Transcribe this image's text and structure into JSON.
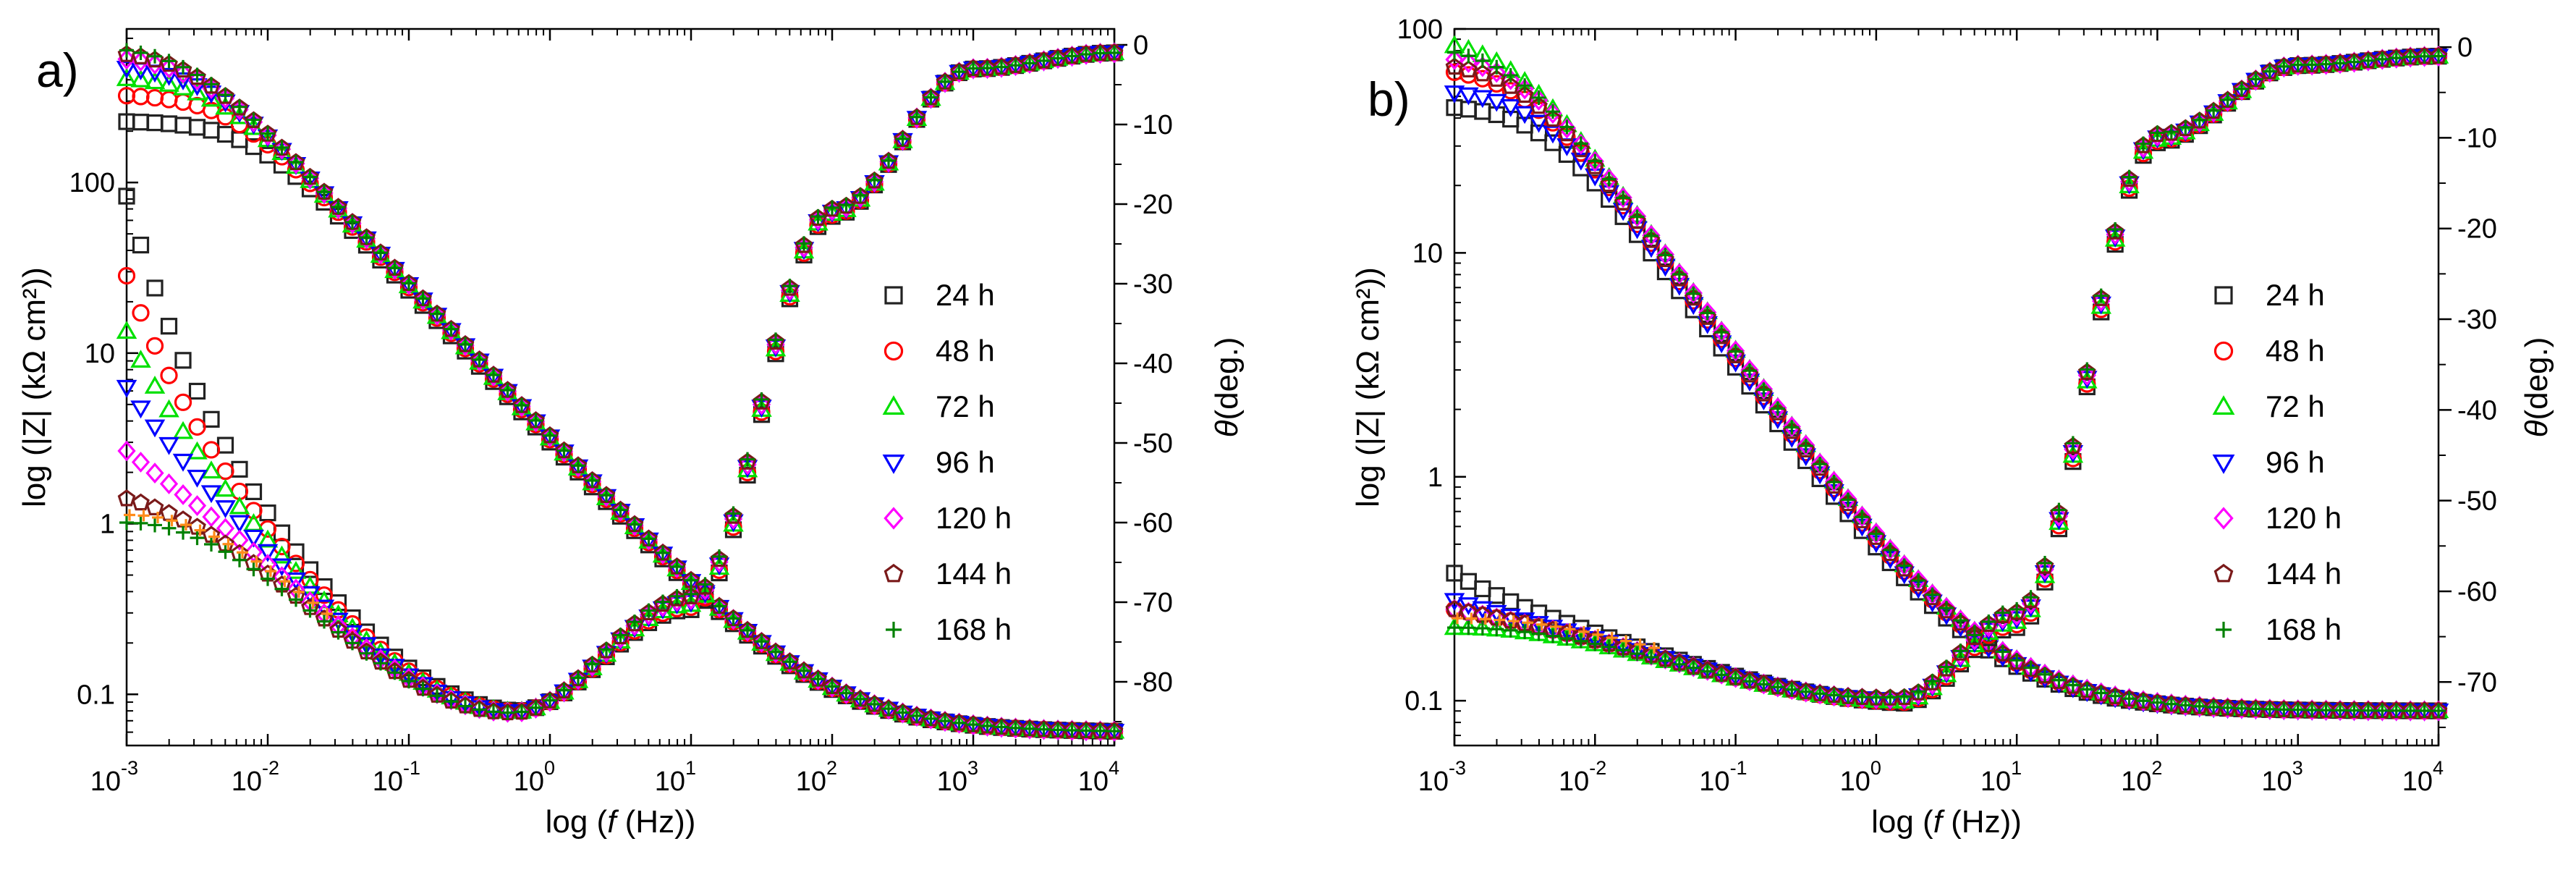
{
  "chart_data": [
    {
      "type": "scatter",
      "panel_label": "a)",
      "xlabel_prefix": "log (",
      "xlabel_var": "f",
      "xlabel_suffix": " (Hz))",
      "ylabel": "log (|Z| (kΩ cm²))",
      "y2label_var": "θ",
      "y2label_suffix": "(deg.)",
      "x_scale": "log",
      "xlim_log10": [
        -3,
        4
      ],
      "y_scale": "log",
      "ylim_log10": [
        -1.3,
        2.9
      ],
      "y2lim": [
        -88,
        2
      ],
      "x_tick_exponents": [
        "-3",
        "-2",
        "-1",
        "0",
        "1",
        "2",
        "3",
        "4"
      ],
      "y_tick_labels": [
        "0.1",
        "1",
        "10",
        "100"
      ],
      "y2_tick_labels": [
        "0",
        "-10",
        "-20",
        "-30",
        "-40",
        "-50",
        "-60",
        "-70",
        "-80"
      ],
      "y2_ticks": [
        0,
        -10,
        -20,
        -30,
        -40,
        -50,
        -60,
        -70,
        -80
      ],
      "legend": [
        "24 h",
        "48 h",
        "72 h",
        "96 h",
        "120 h",
        "144 h",
        "168 h"
      ],
      "legend_position": "right-center",
      "magnitude_model": {
        "series": [
          {
            "name": "24 h",
            "R0": 0.06,
            "Rp": 230,
            "fc": 0.0079,
            "n": 0.9
          },
          {
            "name": "48 h",
            "R0": 0.06,
            "Rp": 330,
            "fc": 0.0055,
            "n": 0.9
          },
          {
            "name": "72 h",
            "R0": 0.06,
            "Rp": 420,
            "fc": 0.0043,
            "n": 0.9
          },
          {
            "name": "96 h",
            "R0": 0.06,
            "Rp": 490,
            "fc": 0.0037,
            "n": 0.9
          },
          {
            "name": "120 h",
            "R0": 0.06,
            "Rp": 560,
            "fc": 0.0032,
            "n": 0.9
          },
          {
            "name": "144 h",
            "R0": 0.06,
            "Rp": 600,
            "fc": 0.003,
            "n": 0.9
          },
          {
            "name": "168 h",
            "R0": 0.06,
            "Rp": 640,
            "fc": 0.0028,
            "n": 0.9
          }
        ]
      },
      "phase_model": {
        "series": [
          {
            "name": "24 h",
            "phase_at_1e-3": -19
          },
          {
            "name": "48 h",
            "phase_at_1e-3": -29
          },
          {
            "name": "72 h",
            "phase_at_1e-3": -36
          },
          {
            "name": "96 h",
            "phase_at_1e-3": -43
          },
          {
            "name": "120 h",
            "phase_at_1e-3": -51
          },
          {
            "name": "144 h",
            "phase_at_1e-3": -57
          },
          {
            "name": "168 h",
            "phase_at_1e-3": -60
          }
        ],
        "minimum": {
          "x": 0.55,
          "y": -84
        },
        "approx_at_10Hz": -70,
        "approx_at_100Hz": -21,
        "approx_at_1000Hz": -3,
        "approx_at_10000Hz": -1
      }
    },
    {
      "type": "scatter",
      "panel_label": "b)",
      "xlabel_prefix": "log (",
      "xlabel_var": "f",
      "xlabel_suffix": " (Hz))",
      "ylabel": "log (|Z| (kΩ cm²))",
      "y2label_var": "θ",
      "y2label_suffix": "(deg.)",
      "x_scale": "log",
      "xlim_log10": [
        -3,
        4
      ],
      "y_scale": "log",
      "ylim_log10": [
        -1.2,
        2.0
      ],
      "y2lim": [
        -77,
        2
      ],
      "x_tick_exponents": [
        "-3",
        "-2",
        "-1",
        "0",
        "1",
        "2",
        "3",
        "4"
      ],
      "y_tick_labels": [
        "0.1",
        "1",
        "10",
        "100"
      ],
      "y2_tick_labels": [
        "0",
        "-10",
        "-20",
        "-30",
        "-40",
        "-50",
        "-60",
        "-70"
      ],
      "y2_ticks": [
        0,
        -10,
        -20,
        -30,
        -40,
        -50,
        -60,
        -70
      ],
      "legend": [
        "24 h",
        "48 h",
        "72 h",
        "96 h",
        "120 h",
        "144 h",
        "168 h"
      ],
      "legend_position": "right-center",
      "magnitude_model": {
        "series": [
          {
            "name": "24 h",
            "R0": 0.09,
            "Rp": 46,
            "fc": 0.0045,
            "n": 0.88
          },
          {
            "name": "48 h",
            "R0": 0.09,
            "Rp": 68,
            "fc": 0.0032,
            "n": 0.88
          },
          {
            "name": "72 h",
            "R0": 0.09,
            "Rp": 92,
            "fc": 0.0025,
            "n": 0.88
          },
          {
            "name": "96 h",
            "R0": 0.09,
            "Rp": 54,
            "fc": 0.004,
            "n": 0.88
          },
          {
            "name": "120 h",
            "R0": 0.09,
            "Rp": 78,
            "fc": 0.003,
            "n": 0.88
          },
          {
            "name": "144 h",
            "R0": 0.09,
            "Rp": 72,
            "fc": 0.0031,
            "n": 0.88
          },
          {
            "name": "168 h",
            "R0": 0.09,
            "Rp": 85,
            "fc": 0.0027,
            "n": 0.88
          }
        ]
      },
      "phase_model": {
        "series": [
          {
            "name": "24 h",
            "phase_at_1e-3": -58
          },
          {
            "name": "48 h",
            "phase_at_1e-3": -62
          },
          {
            "name": "72 h",
            "phase_at_1e-3": -64
          },
          {
            "name": "96 h",
            "phase_at_1e-3": -61
          },
          {
            "name": "120 h",
            "phase_at_1e-3": -62
          },
          {
            "name": "144 h",
            "phase_at_1e-3": -62
          },
          {
            "name": "168 h",
            "phase_at_1e-3": -64
          }
        ],
        "minimum": {
          "x": 1.5,
          "y": -72
        },
        "approx_at_10Hz": -63,
        "approx_at_100Hz": -10,
        "approx_at_1000Hz": -2,
        "approx_at_10000Hz": -1
      }
    }
  ],
  "series_styles": [
    {
      "name": "24 h",
      "marker": "square",
      "color": "#222222"
    },
    {
      "name": "48 h",
      "marker": "circle",
      "color": "#ff0000"
    },
    {
      "name": "72 h",
      "marker": "triangle-up",
      "color": "#00e000"
    },
    {
      "name": "96 h",
      "marker": "triangle-down",
      "color": "#0000ff"
    },
    {
      "name": "120 h",
      "marker": "diamond",
      "color": "#ff00ff"
    },
    {
      "name": "144 h",
      "marker": "pentagon",
      "color": "#7a1a1a"
    },
    {
      "name": "168 h",
      "marker": "plus",
      "color": "#008000"
    }
  ],
  "phase_overlay_color": "#ff8c1a"
}
